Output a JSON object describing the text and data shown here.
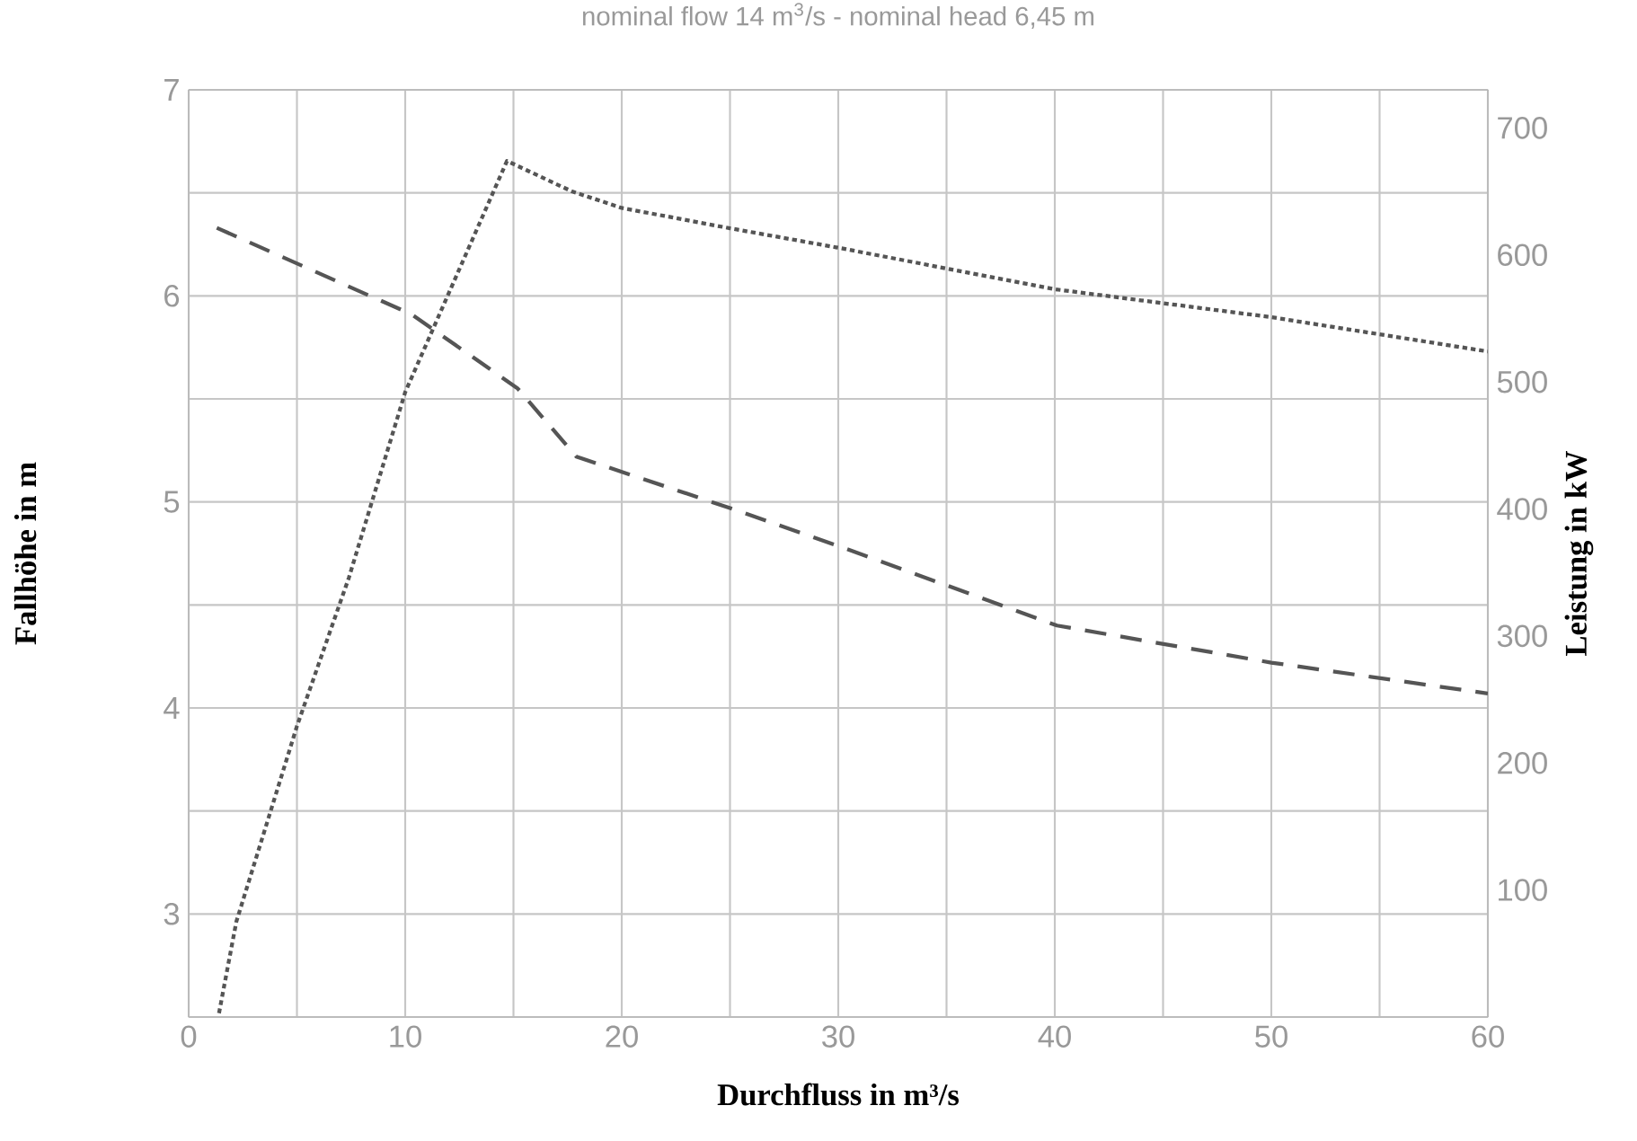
{
  "chart_data": {
    "type": "line",
    "title": "nominal flow 14 m$^{3}$/s - nominal head 6,45 m",
    "xlabel": "Durchfluss in m³/s",
    "ylabel": "Fallhöhe in m",
    "y2label": "Leistung in kW",
    "series": [
      {
        "color": "#555555",
        "line_style": "dashed",
        "x": [
          1.3,
          10.3,
          15.2,
          17.9,
          25,
          29.9,
          40.1,
          50,
          60
        ],
        "values": [
          6.33,
          5.91,
          5.55,
          5.22,
          4.97,
          4.79,
          4.4,
          4.22,
          4.07
        ]
      },
      {
        "color": "#555555",
        "line_style": "dotted",
        "axis": "y2",
        "x": [
          1.4,
          2.2,
          5,
          7.4,
          10,
          14.7,
          17.7,
          20,
          25,
          29.9,
          40,
          50,
          60
        ],
        "values": [
          3,
          75,
          229,
          346,
          492,
          674,
          650,
          637,
          621,
          606,
          573,
          551,
          524
        ]
      }
    ],
    "xlim": [
      0,
      60
    ],
    "xticks": [
      0,
      {
        "value": 5,
        "label": null
      },
      10,
      {
        "value": 15,
        "label": null
      },
      20,
      {
        "value": 25,
        "label": null
      },
      30,
      {
        "value": 35,
        "label": null
      },
      40,
      {
        "value": 45,
        "label": null
      },
      50,
      {
        "value": 55,
        "label": null
      },
      60
    ],
    "ylim": [
      2.5,
      7
    ],
    "yticks": [
      {
        "value": 2.5,
        "label": null
      },
      3,
      {
        "value": 3.5,
        "label": null
      },
      4,
      {
        "value": 4.5,
        "label": null
      },
      5,
      {
        "value": 5.5,
        "label": null
      },
      6,
      {
        "value": 6.5,
        "label": null
      },
      7
    ],
    "y2lim": [
      0,
      730
    ],
    "y2ticks": [
      100,
      200,
      300,
      400,
      500,
      600,
      700
    ],
    "grid": true
  }
}
